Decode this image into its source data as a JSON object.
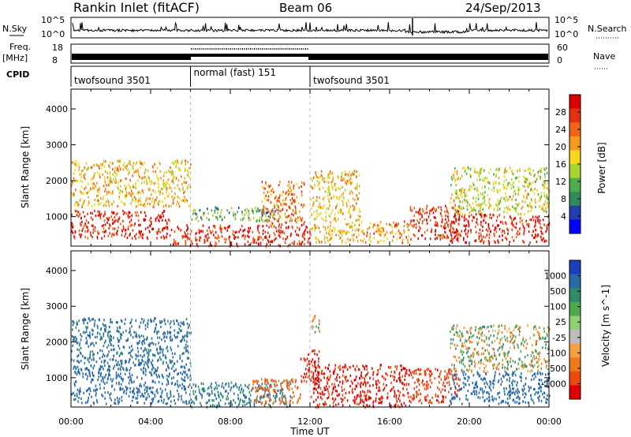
{
  "header": {
    "station": "Rankin Inlet (fitACF)",
    "beam": "Beam 06",
    "date": "24/Sep/2013"
  },
  "status_panels": {
    "nsky_label": "N.Sky",
    "nsky_ticks": [
      "10^5",
      "10^0"
    ],
    "nsearch_label": "N.Search",
    "nsearch_ticks": [
      "10^5",
      "10^0"
    ],
    "freq_label": "Freq.",
    "freq_unit": "[MHz]",
    "freq_ticks": [
      "18",
      "8"
    ],
    "nave_label": "Nave",
    "nave_ticks": [
      "60",
      "0"
    ],
    "cpid_label": "CPID",
    "cpid_segments": [
      {
        "start_h": 0,
        "end_h": 6,
        "name": "twofsound 3501"
      },
      {
        "start_h": 6,
        "end_h": 12,
        "name": "normal (fast) 151"
      },
      {
        "start_h": 12,
        "end_h": 24,
        "name": "twofsound 3501"
      }
    ]
  },
  "axes": {
    "ylabel": "Slant Range [km]",
    "xlabel": "Time UT",
    "yticks": [
      "1000",
      "2000",
      "3000",
      "4000"
    ],
    "xticks": [
      "00:00",
      "04:00",
      "08:00",
      "12:00",
      "16:00",
      "20:00",
      "00:00"
    ]
  },
  "colorbars": {
    "power": {
      "label": "Power [dB]",
      "ticks": [
        "4",
        "8",
        "12",
        "16",
        "20",
        "24",
        "28"
      ],
      "colors": [
        "#0000ff",
        "#1f3fb2",
        "#2f8c5a",
        "#4cae4c",
        "#a8d62f",
        "#f7d71c",
        "#f59a1a",
        "#f06414",
        "#e83010",
        "#dd0000"
      ]
    },
    "velocity": {
      "label": "Velocity [m s^-1]",
      "ticks": [
        "1000",
        "500",
        "100",
        "25",
        "-25",
        "-100",
        "-500",
        "-1000"
      ],
      "colors": [
        "#1a3fbf",
        "#2a6aa8",
        "#2f8c6a",
        "#4caa4c",
        "#8fd070",
        "#bdbdbd",
        "#f5a040",
        "#f07a1a",
        "#ee4a10",
        "#e00000"
      ]
    }
  },
  "chart_data": [
    {
      "type": "heatmap",
      "title": "",
      "xlabel": "Time UT",
      "ylabel": "Slant Range [km]",
      "xlim": [
        0,
        24
      ],
      "ylim": [
        180,
        4550
      ],
      "colorbar_label": "Power [dB]",
      "colorbar_range": [
        0,
        30
      ],
      "regions": [
        {
          "t0": 0.0,
          "t1": 5.0,
          "r0": 400,
          "r1": 1200,
          "value": 27
        },
        {
          "t0": 0.0,
          "t1": 6.0,
          "r0": 1300,
          "r1": 2600,
          "value": 18
        },
        {
          "t0": 5.0,
          "t1": 12.0,
          "r0": 200,
          "r1": 800,
          "value": 26
        },
        {
          "t0": 6.0,
          "t1": 10.5,
          "r0": 900,
          "r1": 1300,
          "value": 10
        },
        {
          "t0": 9.5,
          "t1": 11.7,
          "r0": 800,
          "r1": 2000,
          "value": 22
        },
        {
          "t0": 12.0,
          "t1": 14.5,
          "r0": 300,
          "r1": 2300,
          "value": 18
        },
        {
          "t0": 14.5,
          "t1": 17.0,
          "r0": 300,
          "r1": 900,
          "value": 20
        },
        {
          "t0": 17.0,
          "t1": 19.5,
          "r0": 400,
          "r1": 1400,
          "value": 26
        },
        {
          "t0": 19.0,
          "t1": 24.0,
          "r0": 300,
          "r1": 1100,
          "value": 27
        },
        {
          "t0": 19.0,
          "t1": 24.0,
          "r0": 1100,
          "r1": 2400,
          "value": 15
        }
      ]
    },
    {
      "type": "heatmap",
      "title": "",
      "xlabel": "Time UT",
      "ylabel": "Slant Range [km]",
      "xlim": [
        0,
        24
      ],
      "ylim": [
        180,
        4550
      ],
      "colorbar_label": "Velocity [m s^-1]",
      "colorbar_range": [
        -1000,
        1000
      ],
      "regions": [
        {
          "t0": 0.0,
          "t1": 6.0,
          "r0": 300,
          "r1": 1300,
          "value": 150
        },
        {
          "t0": 0.0,
          "t1": 6.0,
          "r0": 1300,
          "r1": 2700,
          "value": 80
        },
        {
          "t0": 6.0,
          "t1": 11.0,
          "r0": 200,
          "r1": 900,
          "value": 60
        },
        {
          "t0": 9.0,
          "t1": 11.5,
          "r0": 300,
          "r1": 1000,
          "value": -60
        },
        {
          "t0": 11.5,
          "t1": 12.5,
          "r0": 900,
          "r1": 1800,
          "value": -300
        },
        {
          "t0": 12.0,
          "t1": 17.0,
          "r0": 200,
          "r1": 1400,
          "value": -300
        },
        {
          "t0": 12.0,
          "t1": 12.5,
          "r0": 2300,
          "r1": 2800,
          "value": 0
        },
        {
          "t0": 17.0,
          "t1": 19.5,
          "r0": 300,
          "r1": 1300,
          "value": -200
        },
        {
          "t0": 19.0,
          "t1": 24.0,
          "r0": 300,
          "r1": 1200,
          "value": 130
        },
        {
          "t0": 19.0,
          "t1": 24.0,
          "r0": 1200,
          "r1": 2500,
          "value": 0
        }
      ]
    }
  ]
}
